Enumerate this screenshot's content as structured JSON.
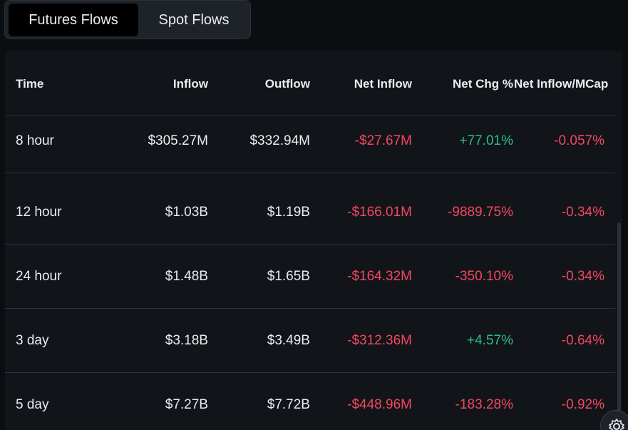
{
  "tabs": [
    {
      "label": "Futures Flows",
      "active": true
    },
    {
      "label": "Spot Flows",
      "active": false
    }
  ],
  "table": {
    "columns": [
      "Time",
      "Inflow",
      "Outflow",
      "Net Inflow",
      "Net Chg %",
      "Net Inflow/MCap"
    ],
    "rows": [
      {
        "time": "8 hour",
        "inflow": "$305.27M",
        "outflow": "$332.94M",
        "net_inflow": "-$27.67M",
        "net_chg": "+77.01%",
        "net_inflow_mcap": "-0.057%"
      },
      {
        "time": "12 hour",
        "inflow": "$1.03B",
        "outflow": "$1.19B",
        "net_inflow": "-$166.01M",
        "net_chg": "-9889.75%",
        "net_inflow_mcap": "-0.34%"
      },
      {
        "time": "24 hour",
        "inflow": "$1.48B",
        "outflow": "$1.65B",
        "net_inflow": "-$164.32M",
        "net_chg": "-350.10%",
        "net_inflow_mcap": "-0.34%"
      },
      {
        "time": "3 day",
        "inflow": "$3.18B",
        "outflow": "$3.49B",
        "net_inflow": "-$312.36M",
        "net_chg": "+4.57%",
        "net_inflow_mcap": "-0.64%"
      },
      {
        "time": "5 day",
        "inflow": "$7.27B",
        "outflow": "$7.72B",
        "net_inflow": "-$448.96M",
        "net_chg": "-183.28%",
        "net_inflow_mcap": "-0.92%"
      }
    ]
  },
  "colors": {
    "positive": "#2ebd85",
    "negative": "#f6465d",
    "background": "#0b0e11",
    "panel": "#11151a"
  },
  "icons": {
    "floating_button": "settings-gear-icon"
  }
}
